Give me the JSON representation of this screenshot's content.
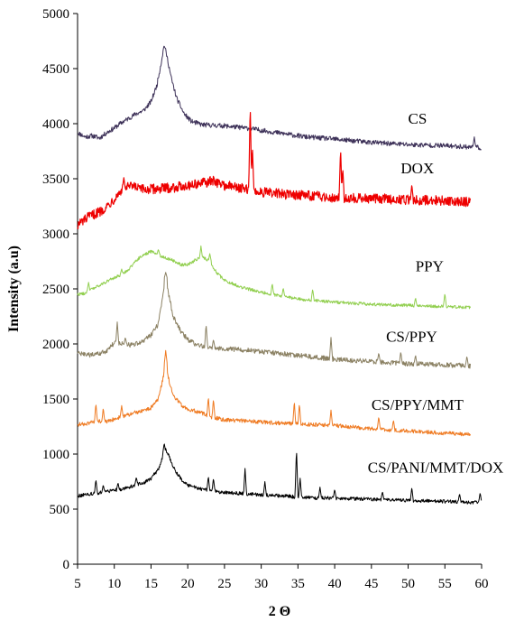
{
  "chart_data": {
    "type": "line",
    "title": "",
    "xlabel": "2 Θ",
    "ylabel": "Intensity (a.u)",
    "xlim": [
      5,
      60
    ],
    "ylim": [
      0,
      5000
    ],
    "x_ticks": [
      5,
      10,
      15,
      20,
      25,
      30,
      35,
      40,
      45,
      50,
      55,
      60
    ],
    "y_ticks": [
      0,
      500,
      1000,
      1500,
      2000,
      2500,
      3000,
      3500,
      4000,
      4500,
      5000
    ],
    "grid": false,
    "legend": "inline labels at right",
    "series": [
      {
        "name": "CS",
        "color": "#3d3158",
        "points": [
          [
            5,
            3920
          ],
          [
            6,
            3880
          ],
          [
            7,
            3890
          ],
          [
            8,
            3870
          ],
          [
            9,
            3920
          ],
          [
            10,
            3960
          ],
          [
            11,
            4010
          ],
          [
            12,
            4050
          ],
          [
            13,
            4090
          ],
          [
            14,
            4120
          ],
          [
            15,
            4200
          ],
          [
            15.8,
            4350
          ],
          [
            16.4,
            4560
          ],
          [
            16.8,
            4720
          ],
          [
            17.2,
            4600
          ],
          [
            17.8,
            4400
          ],
          [
            18.5,
            4230
          ],
          [
            19.5,
            4090
          ],
          [
            20.5,
            4020
          ],
          [
            22,
            3990
          ],
          [
            25,
            3980
          ],
          [
            28,
            3960
          ],
          [
            30,
            3940
          ],
          [
            33,
            3910
          ],
          [
            36,
            3880
          ],
          [
            40,
            3860
          ],
          [
            45,
            3830
          ],
          [
            50,
            3810
          ],
          [
            55,
            3800
          ],
          [
            58,
            3790
          ],
          [
            60,
            3780
          ]
        ],
        "spikes": [
          [
            59,
            3880
          ]
        ],
        "label_at": [
          50,
          4000
        ]
      },
      {
        "name": "DOX",
        "color": "#ee0000",
        "points": [
          [
            5,
            3080
          ],
          [
            6,
            3130
          ],
          [
            7,
            3170
          ],
          [
            8,
            3200
          ],
          [
            9,
            3250
          ],
          [
            10,
            3320
          ],
          [
            11,
            3400
          ],
          [
            12,
            3430
          ],
          [
            13,
            3420
          ],
          [
            14,
            3400
          ],
          [
            16,
            3410
          ],
          [
            18,
            3420
          ],
          [
            20,
            3440
          ],
          [
            22,
            3460
          ],
          [
            23.5,
            3480
          ],
          [
            25,
            3440
          ],
          [
            27,
            3420
          ],
          [
            28,
            3400
          ],
          [
            30,
            3380
          ],
          [
            33,
            3360
          ],
          [
            36,
            3350
          ],
          [
            40,
            3330
          ],
          [
            45,
            3320
          ],
          [
            50,
            3310
          ],
          [
            55,
            3300
          ],
          [
            58.5,
            3290
          ]
        ],
        "spikes": [
          [
            11.3,
            3510
          ],
          [
            28.5,
            4180
          ],
          [
            28.8,
            3800
          ],
          [
            40.8,
            3780
          ],
          [
            41.1,
            3600
          ],
          [
            50.5,
            3450
          ]
        ],
        "label_at": [
          49,
          3550
        ]
      },
      {
        "name": "PPY",
        "color": "#92cf50",
        "points": [
          [
            5,
            2450
          ],
          [
            6,
            2460
          ],
          [
            7,
            2500
          ],
          [
            8,
            2530
          ],
          [
            9,
            2570
          ],
          [
            10,
            2600
          ],
          [
            11,
            2630
          ],
          [
            12,
            2680
          ],
          [
            13,
            2760
          ],
          [
            14,
            2810
          ],
          [
            15,
            2840
          ],
          [
            16,
            2810
          ],
          [
            17,
            2780
          ],
          [
            18,
            2760
          ],
          [
            19,
            2720
          ],
          [
            20,
            2720
          ],
          [
            21,
            2760
          ],
          [
            22,
            2790
          ],
          [
            23,
            2750
          ],
          [
            24,
            2640
          ],
          [
            25,
            2580
          ],
          [
            27,
            2520
          ],
          [
            30,
            2470
          ],
          [
            33,
            2430
          ],
          [
            36,
            2400
          ],
          [
            40,
            2380
          ],
          [
            45,
            2360
          ],
          [
            50,
            2350
          ],
          [
            55,
            2340
          ],
          [
            58.5,
            2330
          ]
        ],
        "spikes": [
          [
            6.5,
            2560
          ],
          [
            11,
            2680
          ],
          [
            16,
            2860
          ],
          [
            21.8,
            2890
          ],
          [
            23,
            2820
          ],
          [
            31.5,
            2550
          ],
          [
            33,
            2510
          ],
          [
            37,
            2500
          ],
          [
            51,
            2420
          ],
          [
            55,
            2460
          ]
        ],
        "label_at": [
          51,
          2660
        ]
      },
      {
        "name": "CS/PPY",
        "color": "#8b8163",
        "points": [
          [
            5,
            1920
          ],
          [
            6,
            1900
          ],
          [
            7,
            1900
          ],
          [
            8,
            1910
          ],
          [
            9,
            1940
          ],
          [
            10,
            2010
          ],
          [
            11,
            2000
          ],
          [
            12,
            1990
          ],
          [
            13,
            2000
          ],
          [
            14,
            2030
          ],
          [
            15,
            2080
          ],
          [
            16,
            2180
          ],
          [
            16.5,
            2400
          ],
          [
            17,
            2600
          ],
          [
            17.5,
            2420
          ],
          [
            18,
            2250
          ],
          [
            19,
            2120
          ],
          [
            20,
            2040
          ],
          [
            21,
            2000
          ],
          [
            22,
            1980
          ],
          [
            24,
            1960
          ],
          [
            27,
            1950
          ],
          [
            30,
            1930
          ],
          [
            33,
            1910
          ],
          [
            36,
            1890
          ],
          [
            40,
            1860
          ],
          [
            45,
            1840
          ],
          [
            50,
            1820
          ],
          [
            55,
            1810
          ],
          [
            58.5,
            1800
          ]
        ],
        "spikes": [
          [
            10.4,
            2200
          ],
          [
            11.5,
            2060
          ],
          [
            17,
            2650
          ],
          [
            22.5,
            2180
          ],
          [
            23.5,
            2040
          ],
          [
            39.5,
            2060
          ],
          [
            46,
            1920
          ],
          [
            49,
            1930
          ],
          [
            51,
            1900
          ],
          [
            58,
            1890
          ]
        ],
        "label_at": [
          47,
          2020
        ]
      },
      {
        "name": "CS/PPY/MMT",
        "color": "#ef7b23",
        "points": [
          [
            5,
            1270
          ],
          [
            6,
            1270
          ],
          [
            7,
            1290
          ],
          [
            8,
            1300
          ],
          [
            9,
            1290
          ],
          [
            10,
            1320
          ],
          [
            11,
            1340
          ],
          [
            12,
            1360
          ],
          [
            13,
            1380
          ],
          [
            14,
            1390
          ],
          [
            15,
            1420
          ],
          [
            16,
            1500
          ],
          [
            16.6,
            1680
          ],
          [
            17,
            1820
          ],
          [
            17.5,
            1650
          ],
          [
            18,
            1540
          ],
          [
            19,
            1450
          ],
          [
            20,
            1410
          ],
          [
            21,
            1390
          ],
          [
            22,
            1370
          ],
          [
            23,
            1340
          ],
          [
            25,
            1310
          ],
          [
            28,
            1300
          ],
          [
            30,
            1290
          ],
          [
            33,
            1280
          ],
          [
            36,
            1270
          ],
          [
            40,
            1260
          ],
          [
            45,
            1230
          ],
          [
            50,
            1210
          ],
          [
            55,
            1190
          ],
          [
            58.5,
            1180
          ]
        ],
        "spikes": [
          [
            7.5,
            1460
          ],
          [
            8.5,
            1420
          ],
          [
            11,
            1440
          ],
          [
            17,
            1940
          ],
          [
            22.8,
            1520
          ],
          [
            23.5,
            1500
          ],
          [
            34.5,
            1480
          ],
          [
            35.2,
            1460
          ],
          [
            39.5,
            1400
          ],
          [
            46,
            1340
          ],
          [
            48,
            1310
          ]
        ],
        "label_at": [
          45,
          1400
        ]
      },
      {
        "name": "CS/PANI/MMT/DOX",
        "color": "#000000",
        "points": [
          [
            5,
            620
          ],
          [
            6,
            630
          ],
          [
            7,
            640
          ],
          [
            8,
            650
          ],
          [
            9,
            660
          ],
          [
            10,
            670
          ],
          [
            11,
            680
          ],
          [
            12,
            700
          ],
          [
            13,
            720
          ],
          [
            14,
            740
          ],
          [
            15,
            780
          ],
          [
            16,
            860
          ],
          [
            16.5,
            960
          ],
          [
            17,
            1040
          ],
          [
            17.5,
            970
          ],
          [
            18,
            880
          ],
          [
            19,
            780
          ],
          [
            20,
            720
          ],
          [
            21,
            700
          ],
          [
            22,
            680
          ],
          [
            23,
            670
          ],
          [
            24,
            660
          ],
          [
            25,
            650
          ],
          [
            28,
            640
          ],
          [
            30,
            630
          ],
          [
            33,
            620
          ],
          [
            35,
            610
          ],
          [
            38,
            600
          ],
          [
            40,
            600
          ],
          [
            45,
            590
          ],
          [
            50,
            580
          ],
          [
            55,
            570
          ],
          [
            60,
            560
          ]
        ],
        "spikes": [
          [
            7.5,
            770
          ],
          [
            8.5,
            720
          ],
          [
            10.5,
            740
          ],
          [
            13,
            790
          ],
          [
            16.8,
            1100
          ],
          [
            22.8,
            800
          ],
          [
            23.5,
            780
          ],
          [
            27.8,
            870
          ],
          [
            30.5,
            750
          ],
          [
            34.8,
            1050
          ],
          [
            35.3,
            780
          ],
          [
            38,
            700
          ],
          [
            40,
            680
          ],
          [
            46.5,
            660
          ],
          [
            50.5,
            700
          ],
          [
            57,
            640
          ],
          [
            59.8,
            650
          ]
        ],
        "label_at": [
          44.5,
          830
        ]
      }
    ]
  }
}
